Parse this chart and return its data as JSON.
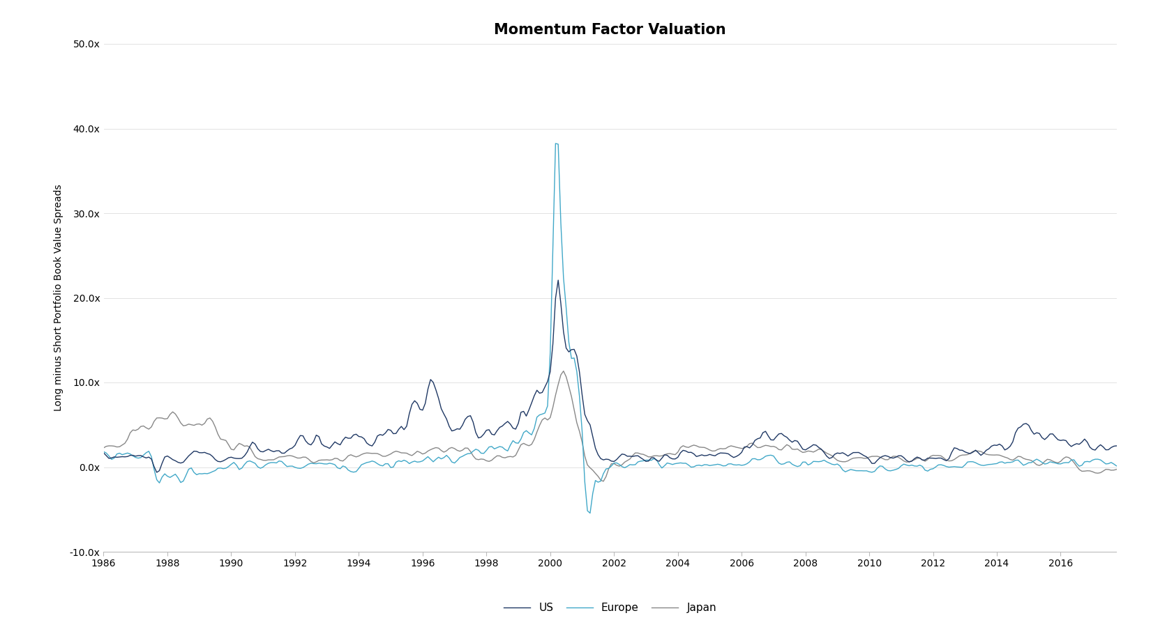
{
  "title": "Momentum Factor Valuation",
  "ylabel": "Long minus Short Portfolio Book Value Spreads",
  "xlim": [
    1986.0,
    2017.75
  ],
  "ylim": [
    -10,
    50
  ],
  "yticks": [
    -10,
    0,
    10,
    20,
    30,
    40,
    50
  ],
  "ytick_labels": [
    "-10.0x",
    "0.0x",
    "10.0x",
    "20.0x",
    "30.0x",
    "40.0x",
    "50.0x"
  ],
  "xticks": [
    1986,
    1988,
    1990,
    1992,
    1994,
    1996,
    1998,
    2000,
    2002,
    2004,
    2006,
    2008,
    2010,
    2012,
    2014,
    2016
  ],
  "color_us": "#1F3864",
  "color_europe": "#41A8C8",
  "color_japan": "#888888",
  "legend_labels": [
    "US",
    "Europe",
    "Japan"
  ],
  "line_width": 1.0,
  "background_color": "#FFFFFF",
  "title_fontsize": 15,
  "label_fontsize": 10,
  "tick_fontsize": 10,
  "legend_fontsize": 11
}
